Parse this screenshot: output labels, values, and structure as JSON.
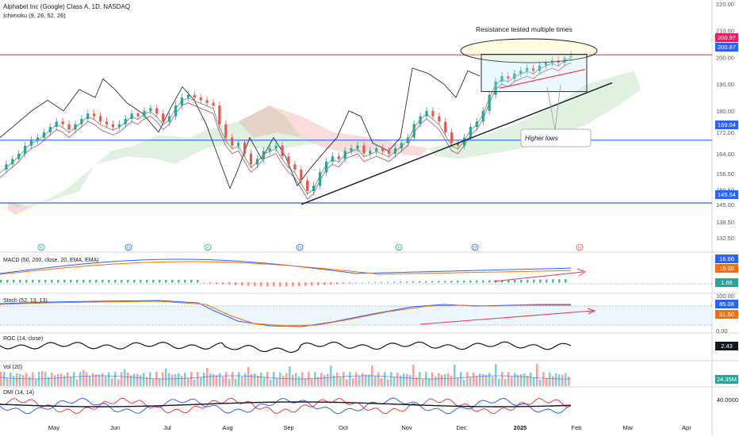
{
  "header": {
    "title": "Alphabet Inc (Google) Class A, 1D, NASDAQ",
    "indicator": "Ichimoku (9, 26, 52, 26)"
  },
  "panes": {
    "macd": "MACD (50, 200, close, 20, EMA, EMA)",
    "stoch": "Stoch (52, 13, 13)",
    "roc": "ROC (14, close)",
    "vol": "Vol (20)",
    "dmi": "DMI (14, 14)"
  },
  "annotations": {
    "resistance": "Resistance tested multiple times",
    "higher_lows": "Higher lows"
  },
  "price_tags": {
    "r1": "200.97",
    "r2": "200.87",
    "support_mid": "169.04",
    "support_low": "145.54",
    "macd_a": "16.66",
    "macd_b": "15.00",
    "macd_hist": "1.66",
    "stoch_k": "85.08",
    "stoch_d": "81.50",
    "roc": "2.43",
    "vol": "24.35M",
    "dmi": "40.0000"
  },
  "colors": {
    "up": "#26a69a",
    "down": "#ef5350",
    "resistance_line": "#e91e63",
    "support_line": "#2962ff",
    "macd_line": "#2962ff",
    "signal_line": "#ff6d00",
    "cloud_green": "#a5d6a7",
    "cloud_red": "#ef9a9a",
    "stoch_k": "#2962ff",
    "stoch_d": "#ff6d00",
    "arrow": "#f23645"
  },
  "chart_data": {
    "type": "candlestick",
    "title": "Alphabet Inc (Google) Class A, 1D, NASDAQ",
    "months": [
      "May",
      "Jun",
      "Jul",
      "Aug",
      "Sep",
      "Oct",
      "Nov",
      "Dec",
      "2025",
      "Feb",
      "Mar",
      "Apr"
    ],
    "y_ticks": [
      "220.00",
      "210.00",
      "200.00",
      "190.00",
      "180.00",
      "172.00",
      "164.00",
      "156.50",
      "150.50",
      "145.00",
      "138.50",
      "132.50"
    ],
    "ylim": [
      132.5,
      220
    ],
    "horizontal_levels": [
      200.97,
      200.87,
      169.04,
      145.54
    ],
    "close_path": [
      [
        0,
        158
      ],
      [
        2,
        160
      ],
      [
        4,
        162
      ],
      [
        6,
        164
      ],
      [
        8,
        167
      ],
      [
        10,
        169
      ],
      [
        12,
        170
      ],
      [
        14,
        172
      ],
      [
        16,
        174
      ],
      [
        18,
        176
      ],
      [
        20,
        175
      ],
      [
        22,
        173
      ],
      [
        24,
        175
      ],
      [
        26,
        177
      ],
      [
        28,
        179
      ],
      [
        30,
        178
      ],
      [
        32,
        176
      ],
      [
        34,
        175
      ],
      [
        36,
        174
      ],
      [
        38,
        175
      ],
      [
        40,
        177
      ],
      [
        42,
        179
      ],
      [
        44,
        178
      ],
      [
        46,
        180
      ],
      [
        48,
        181
      ],
      [
        50,
        179
      ],
      [
        52,
        176
      ],
      [
        54,
        178
      ],
      [
        56,
        182
      ],
      [
        58,
        185
      ],
      [
        60,
        186
      ],
      [
        62,
        185
      ],
      [
        64,
        184
      ],
      [
        66,
        183
      ],
      [
        68,
        182
      ],
      [
        70,
        175
      ],
      [
        72,
        170
      ],
      [
        74,
        167
      ],
      [
        76,
        168
      ],
      [
        78,
        164
      ],
      [
        80,
        160
      ],
      [
        82,
        162
      ],
      [
        84,
        165
      ],
      [
        86,
        166
      ],
      [
        88,
        167
      ],
      [
        90,
        163
      ],
      [
        92,
        160
      ],
      [
        94,
        158
      ],
      [
        96,
        154
      ],
      [
        98,
        150
      ],
      [
        100,
        152
      ],
      [
        102,
        157
      ],
      [
        104,
        161
      ],
      [
        106,
        163
      ],
      [
        108,
        162
      ],
      [
        110,
        165
      ],
      [
        112,
        166
      ],
      [
        114,
        167
      ],
      [
        116,
        164
      ],
      [
        118,
        165
      ],
      [
        120,
        166
      ],
      [
        122,
        165
      ],
      [
        124,
        164
      ],
      [
        126,
        166
      ],
      [
        128,
        168
      ],
      [
        130,
        170
      ],
      [
        132,
        175
      ],
      [
        134,
        178
      ],
      [
        136,
        180
      ],
      [
        138,
        178
      ],
      [
        140,
        176
      ],
      [
        142,
        172
      ],
      [
        144,
        168
      ],
      [
        146,
        167
      ],
      [
        148,
        170
      ],
      [
        150,
        174
      ],
      [
        152,
        176
      ],
      [
        154,
        180
      ],
      [
        156,
        186
      ],
      [
        158,
        191
      ],
      [
        160,
        193
      ],
      [
        162,
        192
      ],
      [
        164,
        194
      ],
      [
        166,
        195
      ],
      [
        168,
        196
      ],
      [
        170,
        195
      ],
      [
        172,
        197
      ],
      [
        174,
        198
      ],
      [
        176,
        199
      ],
      [
        178,
        198
      ],
      [
        180,
        200
      ],
      [
        182,
        201
      ]
    ],
    "series": [
      {
        "name": "MACD (50, 200, close, 20, EMA, EMA)",
        "last": 16.66
      },
      {
        "name": "Stoch (52, 13, 13)",
        "last": 85.08
      },
      {
        "name": "ROC (14, close)",
        "last": 2.43
      },
      {
        "name": "Vol (20)",
        "last": "24.35M"
      },
      {
        "name": "DMI (14, 14)",
        "last": 40.0
      }
    ]
  }
}
